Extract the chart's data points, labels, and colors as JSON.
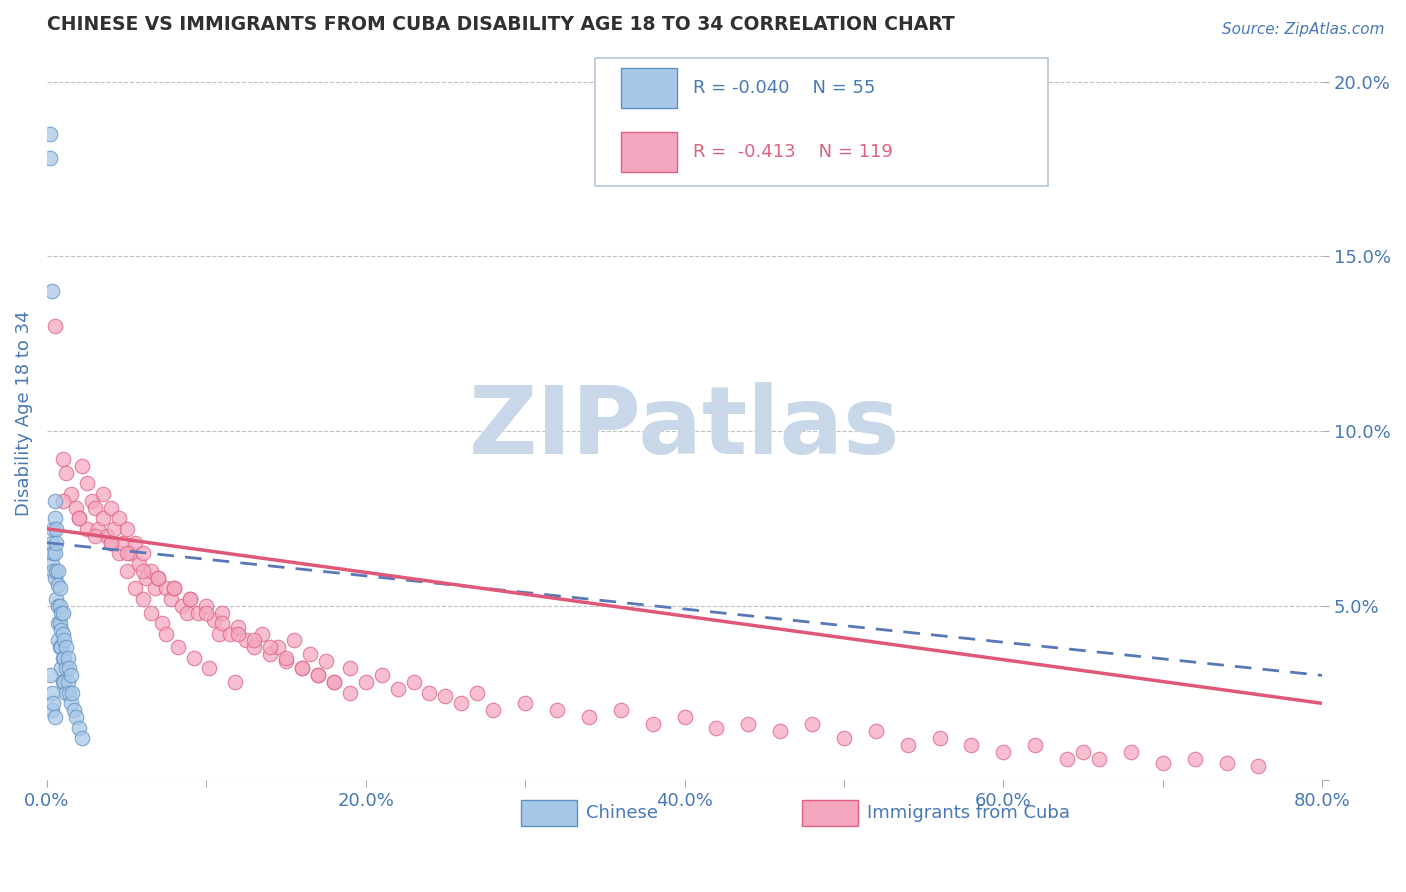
{
  "title": "CHINESE VS IMMIGRANTS FROM CUBA DISABILITY AGE 18 TO 34 CORRELATION CHART",
  "source_text": "Source: ZipAtlas.com",
  "ylabel": "Disability Age 18 to 34",
  "xlim": [
    0.0,
    0.8
  ],
  "ylim": [
    0.0,
    0.21
  ],
  "xticks": [
    0.0,
    0.1,
    0.2,
    0.3,
    0.4,
    0.5,
    0.6,
    0.7,
    0.8
  ],
  "xticklabels": [
    "0.0%",
    "",
    "20.0%",
    "",
    "40.0%",
    "",
    "60.0%",
    "",
    "80.0%"
  ],
  "yticks_right": [
    0.0,
    0.05,
    0.1,
    0.15,
    0.2
  ],
  "yticklabels_right": [
    "",
    "5.0%",
    "10.0%",
    "15.0%",
    "20.0%"
  ],
  "legend_blue_label": "Chinese",
  "legend_pink_label": "Immigrants from Cuba",
  "R_blue": -0.04,
  "N_blue": 55,
  "R_pink": -0.413,
  "N_pink": 119,
  "blue_color": "#a8c8e8",
  "pink_color": "#f4a8c0",
  "blue_edge_color": "#6090c0",
  "pink_edge_color": "#e06080",
  "blue_line_color": "#5878b8",
  "pink_line_color": "#e05878",
  "watermark": "ZIPatlas",
  "watermark_color": "#c8d8e8",
  "title_color": "#303030",
  "axis_label_color": "#4878b8",
  "tick_color": "#4878b8",
  "grid_color": "#c0c0c0",
  "chinese_x": [
    0.002,
    0.002,
    0.003,
    0.003,
    0.003,
    0.004,
    0.004,
    0.004,
    0.005,
    0.005,
    0.005,
    0.005,
    0.006,
    0.006,
    0.006,
    0.006,
    0.007,
    0.007,
    0.007,
    0.007,
    0.007,
    0.008,
    0.008,
    0.008,
    0.008,
    0.009,
    0.009,
    0.009,
    0.009,
    0.01,
    0.01,
    0.01,
    0.01,
    0.011,
    0.011,
    0.011,
    0.012,
    0.012,
    0.012,
    0.013,
    0.013,
    0.014,
    0.014,
    0.015,
    0.015,
    0.016,
    0.017,
    0.018,
    0.02,
    0.022,
    0.002,
    0.003,
    0.003,
    0.004,
    0.005
  ],
  "chinese_y": [
    0.185,
    0.178,
    0.14,
    0.068,
    0.062,
    0.072,
    0.065,
    0.06,
    0.08,
    0.075,
    0.065,
    0.058,
    0.072,
    0.068,
    0.06,
    0.052,
    0.06,
    0.056,
    0.05,
    0.045,
    0.04,
    0.055,
    0.05,
    0.045,
    0.038,
    0.048,
    0.043,
    0.038,
    0.032,
    0.048,
    0.042,
    0.035,
    0.028,
    0.04,
    0.035,
    0.028,
    0.038,
    0.032,
    0.025,
    0.035,
    0.028,
    0.032,
    0.025,
    0.03,
    0.022,
    0.025,
    0.02,
    0.018,
    0.015,
    0.012,
    0.03,
    0.025,
    0.02,
    0.022,
    0.018
  ],
  "cuba_x": [
    0.005,
    0.01,
    0.012,
    0.015,
    0.018,
    0.02,
    0.022,
    0.025,
    0.025,
    0.028,
    0.03,
    0.032,
    0.035,
    0.035,
    0.038,
    0.04,
    0.04,
    0.042,
    0.045,
    0.045,
    0.048,
    0.05,
    0.05,
    0.052,
    0.055,
    0.055,
    0.058,
    0.06,
    0.06,
    0.062,
    0.065,
    0.065,
    0.068,
    0.07,
    0.072,
    0.075,
    0.075,
    0.078,
    0.08,
    0.082,
    0.085,
    0.088,
    0.09,
    0.092,
    0.095,
    0.1,
    0.102,
    0.105,
    0.108,
    0.11,
    0.115,
    0.118,
    0.12,
    0.125,
    0.13,
    0.135,
    0.14,
    0.145,
    0.15,
    0.155,
    0.16,
    0.165,
    0.17,
    0.175,
    0.18,
    0.19,
    0.2,
    0.21,
    0.22,
    0.23,
    0.24,
    0.25,
    0.26,
    0.27,
    0.28,
    0.3,
    0.32,
    0.34,
    0.36,
    0.38,
    0.4,
    0.42,
    0.44,
    0.46,
    0.48,
    0.5,
    0.52,
    0.54,
    0.56,
    0.58,
    0.6,
    0.62,
    0.64,
    0.65,
    0.66,
    0.68,
    0.7,
    0.72,
    0.74,
    0.76,
    0.01,
    0.02,
    0.03,
    0.04,
    0.05,
    0.06,
    0.07,
    0.08,
    0.09,
    0.1,
    0.11,
    0.12,
    0.13,
    0.14,
    0.15,
    0.16,
    0.17,
    0.18,
    0.19
  ],
  "cuba_y": [
    0.13,
    0.092,
    0.088,
    0.082,
    0.078,
    0.075,
    0.09,
    0.085,
    0.072,
    0.08,
    0.078,
    0.072,
    0.082,
    0.075,
    0.07,
    0.078,
    0.068,
    0.072,
    0.075,
    0.065,
    0.068,
    0.072,
    0.06,
    0.065,
    0.068,
    0.055,
    0.062,
    0.065,
    0.052,
    0.058,
    0.06,
    0.048,
    0.055,
    0.058,
    0.045,
    0.055,
    0.042,
    0.052,
    0.055,
    0.038,
    0.05,
    0.048,
    0.052,
    0.035,
    0.048,
    0.05,
    0.032,
    0.046,
    0.042,
    0.048,
    0.042,
    0.028,
    0.044,
    0.04,
    0.038,
    0.042,
    0.036,
    0.038,
    0.034,
    0.04,
    0.032,
    0.036,
    0.03,
    0.034,
    0.028,
    0.032,
    0.028,
    0.03,
    0.026,
    0.028,
    0.025,
    0.024,
    0.022,
    0.025,
    0.02,
    0.022,
    0.02,
    0.018,
    0.02,
    0.016,
    0.018,
    0.015,
    0.016,
    0.014,
    0.016,
    0.012,
    0.014,
    0.01,
    0.012,
    0.01,
    0.008,
    0.01,
    0.006,
    0.008,
    0.006,
    0.008,
    0.005,
    0.006,
    0.005,
    0.004,
    0.08,
    0.075,
    0.07,
    0.068,
    0.065,
    0.06,
    0.058,
    0.055,
    0.052,
    0.048,
    0.045,
    0.042,
    0.04,
    0.038,
    0.035,
    0.032,
    0.03,
    0.028,
    0.025
  ],
  "blue_trend_x": [
    0.0,
    0.8
  ],
  "blue_trend_y": [
    0.068,
    0.03
  ],
  "pink_trend_x": [
    0.0,
    0.8
  ],
  "pink_trend_y": [
    0.072,
    0.022
  ]
}
